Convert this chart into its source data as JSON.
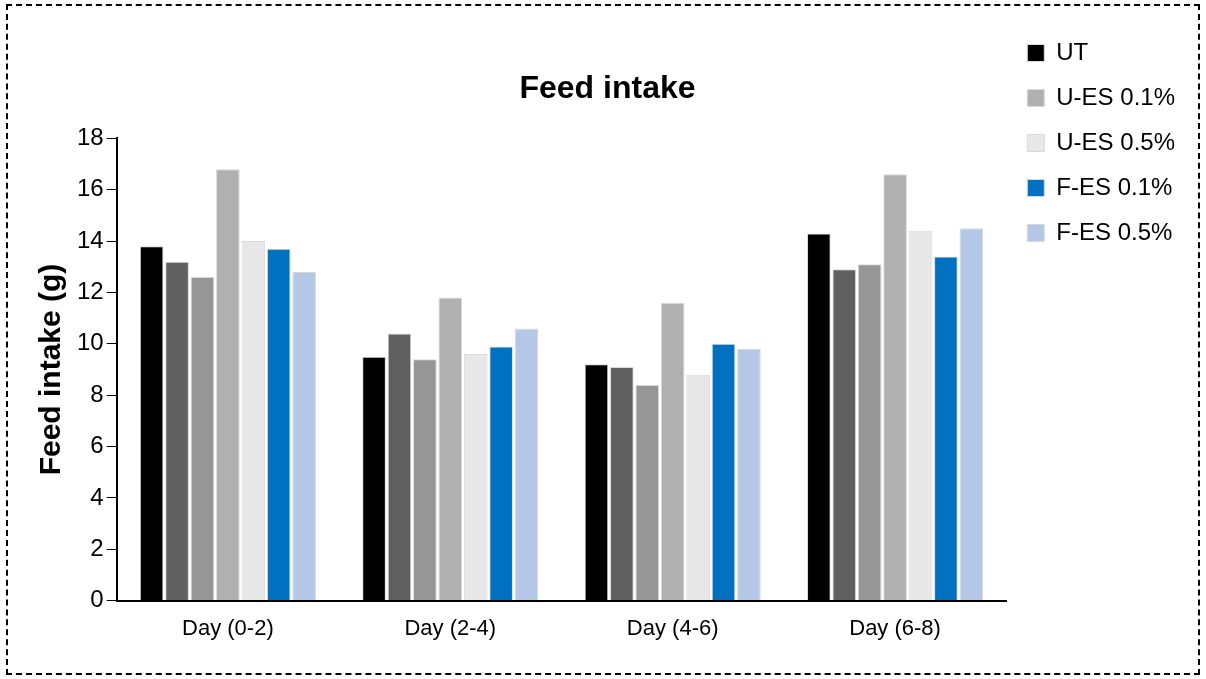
{
  "chart_data": {
    "type": "bar",
    "title": "Feed intake",
    "ylabel": "Feed intake (g)",
    "categories": [
      "Day (0-2)",
      "Day (2-4)",
      "Day (4-6)",
      "Day (6-8)"
    ],
    "series": [
      {
        "name": "UT",
        "color": "#000000",
        "values": [
          13.8,
          9.5,
          9.2,
          14.3
        ]
      },
      {
        "color": "#606060",
        "values": [
          13.2,
          10.4,
          9.1,
          12.9
        ]
      },
      {
        "color": "#969696",
        "values": [
          12.6,
          9.4,
          8.4,
          13.1
        ]
      },
      {
        "name": "U-ES 0.1%",
        "color": "#b0b0b0",
        "values": [
          16.8,
          11.8,
          11.6,
          16.6
        ]
      },
      {
        "name": "U-ES 0.5%",
        "color": "#e8e8e8",
        "values": [
          14.0,
          9.6,
          8.8,
          14.4
        ]
      },
      {
        "name": "F-ES 0.1%",
        "color": "#0070c0",
        "values": [
          13.7,
          9.9,
          10.0,
          13.4
        ]
      },
      {
        "name": "F-ES 0.5%",
        "color": "#b4c7e7",
        "values": [
          12.8,
          10.6,
          9.8,
          14.5
        ]
      }
    ],
    "ylim": [
      0,
      18
    ],
    "yticks": [
      0,
      2,
      4,
      6,
      8,
      10,
      12,
      14,
      16,
      18
    ],
    "grid": false,
    "legend": "right"
  }
}
